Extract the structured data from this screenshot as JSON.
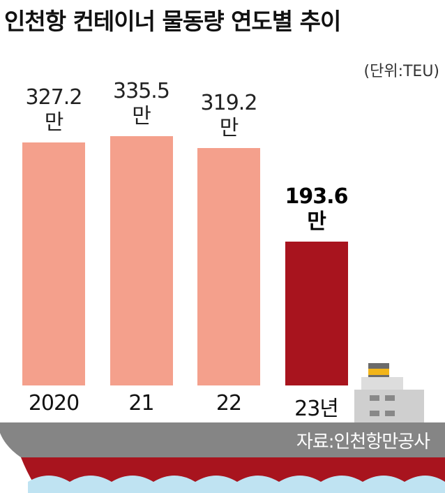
{
  "chart_data": {
    "type": "bar",
    "title": "인천항 컨테이너 물동량 연도별 추이",
    "unit_label": "(단위:TEU)",
    "source": "자료:인천항만공사",
    "categories": [
      "2020",
      "21",
      "22",
      "23년"
    ],
    "values": [
      327.2,
      335.5,
      319.2,
      193.6
    ],
    "value_labels": [
      "327.2\n만",
      "335.5\n만",
      "319.2\n만",
      "193.6\n만"
    ],
    "colors": [
      "#f4a08c",
      "#f4a08c",
      "#f4a08c",
      "#a8141e"
    ],
    "ylim": [
      0,
      340
    ]
  }
}
